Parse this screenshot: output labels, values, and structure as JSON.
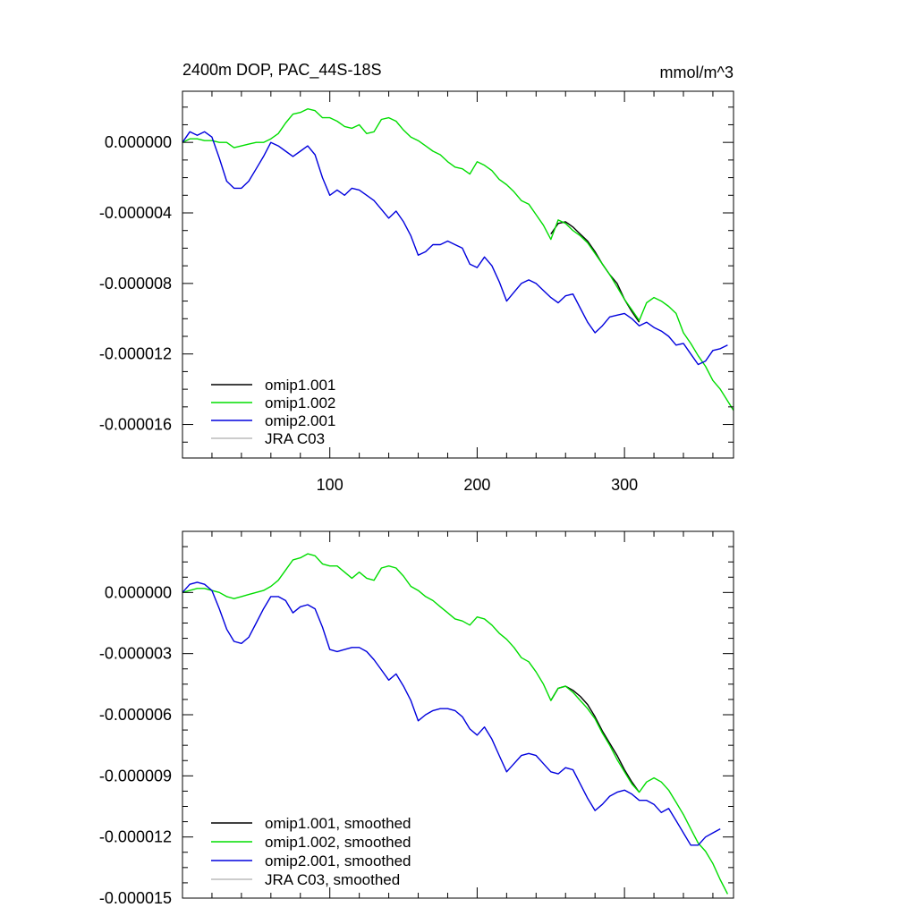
{
  "chart_data": [
    {
      "type": "line",
      "title": "2400m DOP, PAC_44S-18S",
      "units": "mmol/m^3",
      "xlabel": "",
      "ylabel": "",
      "xlim": [
        0,
        374
      ],
      "ylim": [
        -1.79e-05,
        2.9e-06
      ],
      "xticks": [
        100,
        200,
        300
      ],
      "xtick_labels": [
        "100",
        "200",
        "300"
      ],
      "yticks": [
        0.0,
        -4e-06,
        -8e-06,
        -1.2e-05,
        -1.6e-05
      ],
      "ytick_labels": [
        "0.000000",
        "-0.000004",
        "-0.000008",
        "-0.000012",
        "-0.000016"
      ],
      "legend_position": "bottom-left",
      "grid": false,
      "series": [
        {
          "name": "omip1.001",
          "color": "#000000",
          "x": [
            250,
            255,
            260,
            265,
            270,
            275,
            280,
            285,
            290,
            295,
            300,
            305,
            310
          ],
          "y": [
            -5.2e-06,
            -4.6e-06,
            -4.5e-06,
            -4.8e-06,
            -5.2e-06,
            -5.6e-06,
            -6.2e-06,
            -6.9e-06,
            -7.5e-06,
            -8e-06,
            -8.9e-06,
            -9.6e-06,
            -1.02e-05
          ]
        },
        {
          "name": "omip1.002",
          "color": "#00dd00",
          "x": [
            0,
            5,
            10,
            15,
            20,
            25,
            30,
            35,
            40,
            45,
            50,
            55,
            60,
            65,
            70,
            75,
            80,
            85,
            90,
            95,
            100,
            105,
            110,
            115,
            120,
            125,
            130,
            135,
            140,
            145,
            150,
            155,
            160,
            165,
            170,
            175,
            180,
            185,
            190,
            195,
            200,
            205,
            210,
            215,
            220,
            225,
            230,
            235,
            240,
            245,
            250,
            255,
            260,
            265,
            270,
            275,
            280,
            285,
            290,
            295,
            300,
            305,
            310,
            315,
            320,
            325,
            330,
            335,
            340,
            345,
            350,
            355,
            360,
            365,
            374
          ],
          "y": [
            0.0,
            2e-07,
            2e-07,
            1e-07,
            1e-07,
            0.0,
            0.0,
            -3e-07,
            -2e-07,
            -1e-07,
            0.0,
            0.0,
            2e-07,
            5e-07,
            1.1e-06,
            1.6e-06,
            1.7e-06,
            1.9e-06,
            1.8e-06,
            1.4e-06,
            1.4e-06,
            1.2e-06,
            9e-07,
            8e-07,
            1e-06,
            5e-07,
            6e-07,
            1.3e-06,
            1.4e-06,
            1.2e-06,
            7e-07,
            3e-07,
            1e-07,
            -2e-07,
            -5e-07,
            -7e-07,
            -1.1e-06,
            -1.4e-06,
            -1.5e-06,
            -1.8e-06,
            -1.1e-06,
            -1.3e-06,
            -1.6e-06,
            -2.1e-06,
            -2.4e-06,
            -2.8e-06,
            -3.3e-06,
            -3.5e-06,
            -4.1e-06,
            -4.7e-06,
            -5.5e-06,
            -4.4e-06,
            -4.6e-06,
            -5e-06,
            -5.3e-06,
            -5.7e-06,
            -6.3e-06,
            -6.9e-06,
            -7.5e-06,
            -8.2e-06,
            -8.9e-06,
            -9.5e-06,
            -1.01e-05,
            -9.1e-06,
            -8.8e-06,
            -9e-06,
            -9.3e-06,
            -9.7e-06,
            -1.08e-05,
            -1.14e-05,
            -1.21e-05,
            -1.27e-05,
            -1.35e-05,
            -1.4e-05,
            -1.52e-05
          ]
        },
        {
          "name": "omip2.001",
          "color": "#0000dd",
          "x": [
            0,
            5,
            10,
            15,
            20,
            25,
            30,
            35,
            40,
            45,
            50,
            55,
            60,
            65,
            70,
            75,
            80,
            85,
            90,
            95,
            100,
            105,
            110,
            115,
            120,
            125,
            130,
            135,
            140,
            145,
            150,
            155,
            160,
            165,
            170,
            175,
            180,
            185,
            190,
            195,
            200,
            205,
            210,
            215,
            220,
            225,
            230,
            235,
            240,
            245,
            250,
            255,
            260,
            265,
            270,
            275,
            280,
            285,
            290,
            295,
            300,
            305,
            310,
            315,
            320,
            325,
            330,
            335,
            340,
            345,
            350,
            355,
            360,
            365,
            370
          ],
          "y": [
            0.0,
            6e-07,
            4e-07,
            6e-07,
            3e-07,
            -9e-07,
            -2.2e-06,
            -2.6e-06,
            -2.6e-06,
            -2.2e-06,
            -1.5e-06,
            -8e-07,
            0.0,
            -2e-07,
            -5e-07,
            -8e-07,
            -5e-07,
            -2e-07,
            -7e-07,
            -2e-06,
            -3e-06,
            -2.7e-06,
            -3e-06,
            -2.6e-06,
            -2.7e-06,
            -3e-06,
            -3.3e-06,
            -3.8e-06,
            -4.3e-06,
            -3.9e-06,
            -4.5e-06,
            -5.3e-06,
            -6.4e-06,
            -6.2e-06,
            -5.8e-06,
            -5.8e-06,
            -5.6e-06,
            -5.8e-06,
            -6e-06,
            -6.9e-06,
            -7.1e-06,
            -6.5e-06,
            -7e-06,
            -7.9e-06,
            -9e-06,
            -8.5e-06,
            -8e-06,
            -7.8e-06,
            -8e-06,
            -8.4e-06,
            -8.8e-06,
            -9.1e-06,
            -8.7e-06,
            -8.6e-06,
            -9.4e-06,
            -1.02e-05,
            -1.08e-05,
            -1.04e-05,
            -9.9e-06,
            -9.8e-06,
            -9.7e-06,
            -1e-05,
            -1.04e-05,
            -1.02e-05,
            -1.05e-05,
            -1.07e-05,
            -1.1e-05,
            -1.15e-05,
            -1.14e-05,
            -1.2e-05,
            -1.26e-05,
            -1.24e-05,
            -1.18e-05,
            -1.17e-05,
            -1.15e-05
          ]
        },
        {
          "name": "JRA C03",
          "color": "#bbbbbb",
          "x": [],
          "y": []
        }
      ]
    },
    {
      "type": "line",
      "title": "",
      "xlabel": "",
      "ylabel": "",
      "xlim": [
        0,
        374
      ],
      "ylim": [
        -1.5e-05,
        3e-06
      ],
      "xticks": [
        100,
        200,
        300
      ],
      "xtick_labels": [
        "",
        "",
        ""
      ],
      "yticks": [
        0.0,
        -3e-06,
        -6e-06,
        -9e-06,
        -1.2e-05,
        -1.5e-05
      ],
      "ytick_labels": [
        "0.000000",
        "-0.000003",
        "-0.000006",
        "-0.000009",
        "-0.000012",
        "-0.000015"
      ],
      "legend_position": "bottom-left",
      "grid": false,
      "series": [
        {
          "name": "omip1.001, smoothed",
          "color": "#000000",
          "x": [
            250,
            255,
            260,
            265,
            270,
            275,
            280,
            285,
            290,
            295,
            300,
            305,
            310
          ],
          "y": [
            -5.3e-06,
            -4.7e-06,
            -4.6e-06,
            -4.8e-06,
            -5.1e-06,
            -5.5e-06,
            -6.1e-06,
            -6.8e-06,
            -7.4e-06,
            -8e-06,
            -8.7e-06,
            -9.3e-06,
            -9.8e-06
          ]
        },
        {
          "name": "omip1.002, smoothed",
          "color": "#00dd00",
          "x": [
            0,
            5,
            10,
            15,
            20,
            25,
            30,
            35,
            40,
            45,
            50,
            55,
            60,
            65,
            70,
            75,
            80,
            85,
            90,
            95,
            100,
            105,
            110,
            115,
            120,
            125,
            130,
            135,
            140,
            145,
            150,
            155,
            160,
            165,
            170,
            175,
            180,
            185,
            190,
            195,
            200,
            205,
            210,
            215,
            220,
            225,
            230,
            235,
            240,
            245,
            250,
            255,
            260,
            265,
            270,
            275,
            280,
            285,
            290,
            295,
            300,
            305,
            310,
            315,
            320,
            325,
            330,
            335,
            340,
            345,
            350,
            355,
            360,
            365,
            370
          ],
          "y": [
            0.0,
            1e-07,
            2e-07,
            2e-07,
            1e-07,
            0.0,
            -2e-07,
            -3e-07,
            -2e-07,
            -1e-07,
            0.0,
            1e-07,
            3e-07,
            6e-07,
            1.1e-06,
            1.6e-06,
            1.7e-06,
            1.9e-06,
            1.8e-06,
            1.4e-06,
            1.3e-06,
            1.3e-06,
            1e-06,
            7e-07,
            1e-06,
            7e-07,
            6e-07,
            1.2e-06,
            1.3e-06,
            1.2e-06,
            8e-07,
            3e-07,
            1e-07,
            -2e-07,
            -4e-07,
            -7e-07,
            -1e-06,
            -1.3e-06,
            -1.4e-06,
            -1.6e-06,
            -1.2e-06,
            -1.3e-06,
            -1.6e-06,
            -2e-06,
            -2.3e-06,
            -2.7e-06,
            -3.2e-06,
            -3.4e-06,
            -3.9e-06,
            -4.5e-06,
            -5.3e-06,
            -4.7e-06,
            -4.6e-06,
            -4.9e-06,
            -5.3e-06,
            -5.7e-06,
            -6.2e-06,
            -6.9e-06,
            -7.5e-06,
            -8.2e-06,
            -8.8e-06,
            -9.4e-06,
            -9.8e-06,
            -9.3e-06,
            -9.1e-06,
            -9.3e-06,
            -9.7e-06,
            -1.03e-05,
            -1.09e-05,
            -1.16e-05,
            -1.23e-05,
            -1.27e-05,
            -1.33e-05,
            -1.41e-05,
            -1.48e-05
          ]
        },
        {
          "name": "omip2.001, smoothed",
          "color": "#0000dd",
          "x": [
            0,
            5,
            10,
            15,
            20,
            25,
            30,
            35,
            40,
            45,
            50,
            55,
            60,
            65,
            70,
            75,
            80,
            85,
            90,
            95,
            100,
            105,
            110,
            115,
            120,
            125,
            130,
            135,
            140,
            145,
            150,
            155,
            160,
            165,
            170,
            175,
            180,
            185,
            190,
            195,
            200,
            205,
            210,
            215,
            220,
            225,
            230,
            235,
            240,
            245,
            250,
            255,
            260,
            265,
            270,
            275,
            280,
            285,
            290,
            295,
            300,
            305,
            310,
            315,
            320,
            325,
            330,
            335,
            340,
            345,
            350,
            355,
            360,
            365
          ],
          "y": [
            0.0,
            4e-07,
            5e-07,
            4e-07,
            1e-07,
            -8e-07,
            -1.8e-06,
            -2.4e-06,
            -2.5e-06,
            -2.2e-06,
            -1.5e-06,
            -8e-07,
            -2e-07,
            -2e-07,
            -4e-07,
            -1e-06,
            -7e-07,
            -6e-07,
            -8e-07,
            -1.7e-06,
            -2.8e-06,
            -2.9e-06,
            -2.8e-06,
            -2.7e-06,
            -2.7e-06,
            -2.9e-06,
            -3.3e-06,
            -3.8e-06,
            -4.3e-06,
            -4e-06,
            -4.6e-06,
            -5.3e-06,
            -6.3e-06,
            -6e-06,
            -5.8e-06,
            -5.7e-06,
            -5.7e-06,
            -5.8e-06,
            -6.1e-06,
            -6.7e-06,
            -7e-06,
            -6.6e-06,
            -7.2e-06,
            -8e-06,
            -8.8e-06,
            -8.4e-06,
            -8e-06,
            -7.9e-06,
            -8e-06,
            -8.4e-06,
            -8.8e-06,
            -8.9e-06,
            -8.6e-06,
            -8.7e-06,
            -9.4e-06,
            -1.01e-05,
            -1.07e-05,
            -1.04e-05,
            -1e-05,
            -9.8e-06,
            -9.7e-06,
            -9.9e-06,
            -1.02e-05,
            -1.02e-05,
            -1.04e-05,
            -1.08e-05,
            -1.06e-05,
            -1.12e-05,
            -1.18e-05,
            -1.24e-05,
            -1.24e-05,
            -1.2e-05,
            -1.18e-05,
            -1.16e-05
          ]
        },
        {
          "name": "JRA C03, smoothed",
          "color": "#bbbbbb",
          "x": [],
          "y": []
        }
      ]
    }
  ]
}
